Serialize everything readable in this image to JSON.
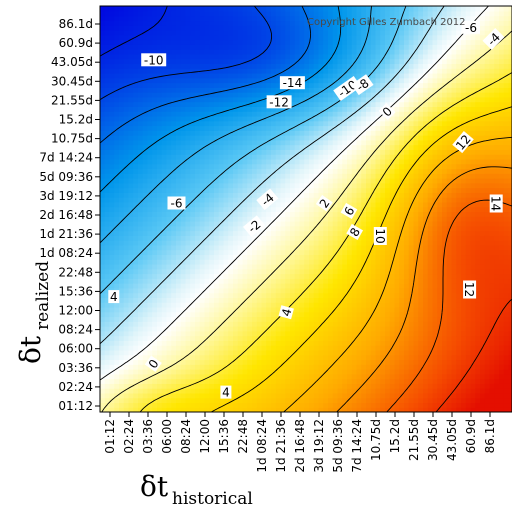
{
  "chart_data": {
    "type": "heatmap",
    "title": "",
    "copyright": "Copyright Gilles Zumbach 2012",
    "xlabel": {
      "symbol": "δt",
      "subscript": "historical"
    },
    "ylabel": {
      "symbol": "δt",
      "subscript": "realized"
    },
    "x_tick_labels": [
      "01:12",
      "02:24",
      "03:36",
      "06:00",
      "08:24",
      "12:00",
      "15:36",
      "22:48",
      "1d 08:24",
      "1d 21:36",
      "2d 16:48",
      "3d 19:12",
      "5d 09:36",
      "7d 14:24",
      "10.75d",
      "15.2d",
      "21.55d",
      "30.45d",
      "43.05d",
      "60.9d",
      "86.1d"
    ],
    "y_tick_labels": [
      "01:12",
      "02:24",
      "03:36",
      "06:00",
      "08:24",
      "12:00",
      "15:36",
      "22:48",
      "1d 08:24",
      "1d 21:36",
      "2d 16:48",
      "3d 19:12",
      "5d 09:36",
      "7d 14:24",
      "10.75d",
      "15.2d",
      "21.55d",
      "30.45d",
      "43.05d",
      "60.9d",
      "86.1d"
    ],
    "color_scale": {
      "low": "#0000e0",
      "mid": "#ffffff",
      "high": "#e00000",
      "range": [
        -16,
        16
      ]
    },
    "contour_levels": [
      -14,
      -12,
      -10,
      -8,
      -6,
      -4,
      -2,
      0,
      2,
      4,
      6,
      8,
      10,
      12,
      14
    ],
    "contour_labels": [
      {
        "text": "-10",
        "x": 2.3,
        "y": 18.1,
        "angle": 0
      },
      {
        "text": "-14",
        "x": 9.6,
        "y": 16.9,
        "angle": 0
      },
      {
        "text": "-12",
        "x": 8.9,
        "y": 15.9,
        "angle": 0
      },
      {
        "text": "-10",
        "x": 12.5,
        "y": 16.6,
        "angle": -35
      },
      {
        "text": "-8",
        "x": 13.3,
        "y": 16.8,
        "angle": -35
      },
      {
        "text": "-6",
        "x": 19.0,
        "y": 19.8,
        "angle": 0
      },
      {
        "text": "-4",
        "x": 20.2,
        "y": 19.2,
        "angle": -45
      },
      {
        "text": "0",
        "x": 14.6,
        "y": 15.4,
        "angle": -45
      },
      {
        "text": "-6",
        "x": 3.5,
        "y": 10.6,
        "angle": 0
      },
      {
        "text": "-4",
        "x": 8.3,
        "y": 10.8,
        "angle": -40
      },
      {
        "text": "-2",
        "x": 7.6,
        "y": 9.4,
        "angle": -40
      },
      {
        "text": "2",
        "x": 11.3,
        "y": 10.6,
        "angle": -55
      },
      {
        "text": "6",
        "x": 12.6,
        "y": 10.2,
        "angle": -60
      },
      {
        "text": "8",
        "x": 12.9,
        "y": 9.1,
        "angle": -60
      },
      {
        "text": "10",
        "x": 14.2,
        "y": 8.9,
        "angle": 90
      },
      {
        "text": "12",
        "x": 18.6,
        "y": 13.8,
        "angle": -50
      },
      {
        "text": "14",
        "x": 20.3,
        "y": 10.6,
        "angle": 90
      },
      {
        "text": "12",
        "x": 18.9,
        "y": 6.1,
        "angle": 90
      },
      {
        "text": "4",
        "x": 9.3,
        "y": 4.9,
        "angle": -75
      },
      {
        "text": "4",
        "x": 0.2,
        "y": 5.7,
        "angle": 0
      },
      {
        "text": "0",
        "x": 2.3,
        "y": 2.2,
        "angle": -55
      },
      {
        "text": "4",
        "x": 6.1,
        "y": 0.7,
        "angle": 0
      }
    ],
    "grid": false,
    "legend": "none"
  }
}
